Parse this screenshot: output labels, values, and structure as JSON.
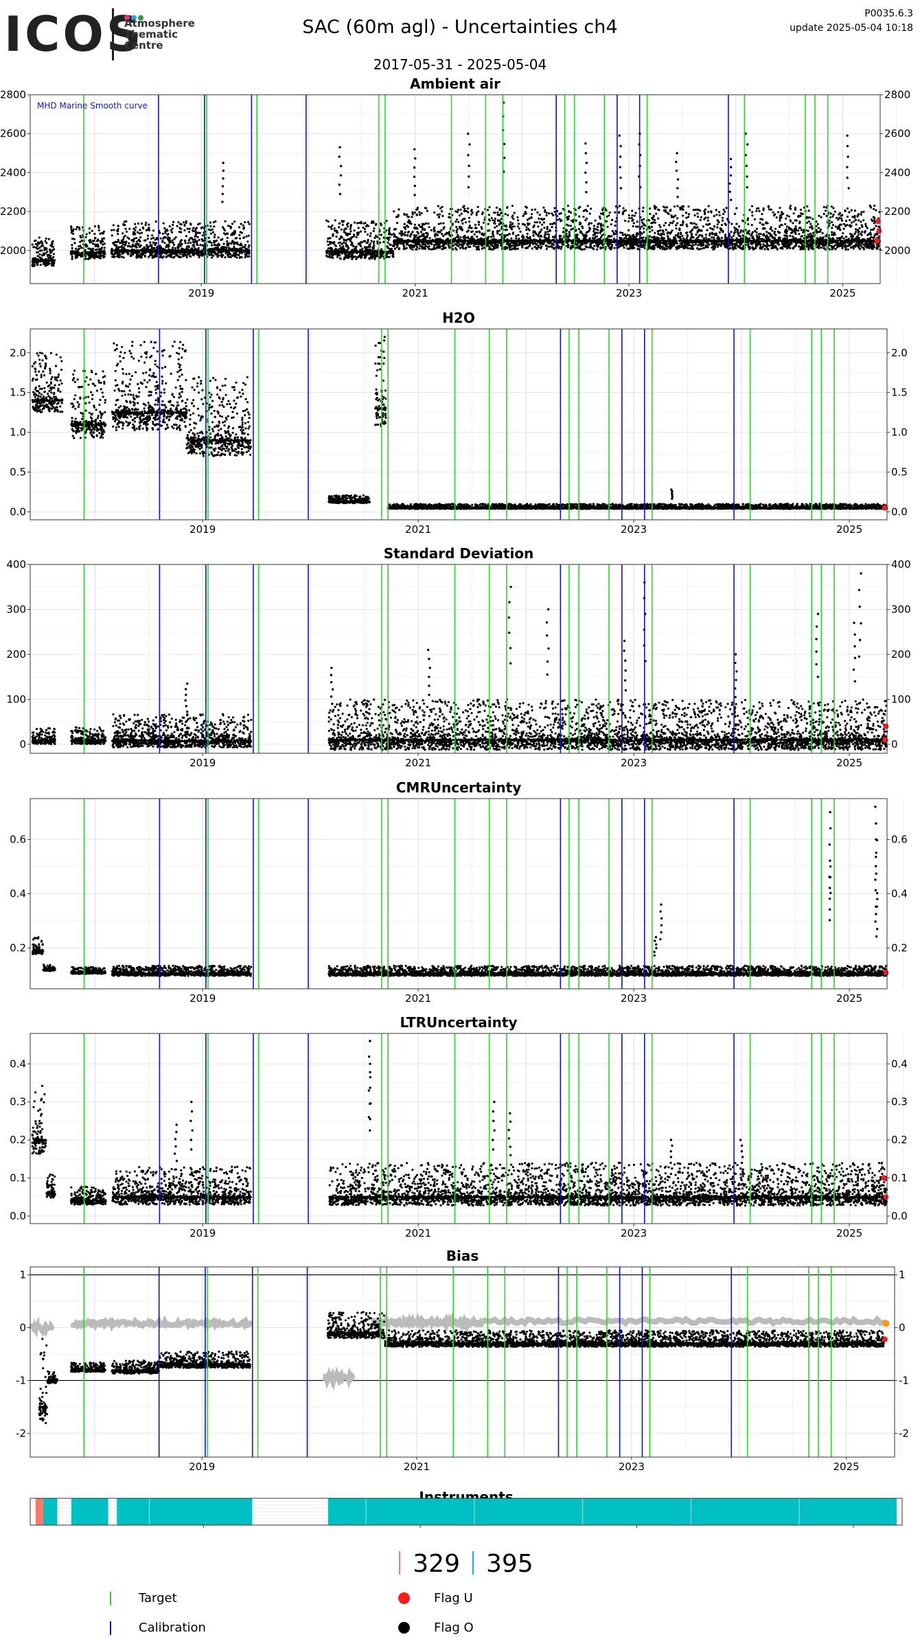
{
  "header": {
    "logo_text": "ICOS",
    "logo_subtitle": [
      "Atmosphere",
      "Thematic",
      "Centre"
    ],
    "title": "SAC  (60m agl) - Uncertainties ch4",
    "version": "P0035.6.3",
    "updated": "update  2025-05-04 10:18",
    "date_range": "2017-05-31 - 2025-05-04"
  },
  "colors": {
    "target": "#22dd22",
    "calibration": "#1010c8",
    "flag_u": "#ff1a1a",
    "flag_o": "#000000",
    "bias_grey": "#bbbbbb",
    "instrument_1": "#f47a6c",
    "instrument_2": "#00c0c4",
    "smooth_curve": "#1010ff"
  },
  "events": {
    "target": [
      2017.9,
      2019.05,
      2019.52,
      2020.66,
      2020.72,
      2021.34,
      2021.66,
      2021.82,
      2022.4,
      2022.49,
      2022.77,
      2023.17,
      2024.08,
      2024.65,
      2024.74,
      2024.86
    ],
    "calibration": [
      2018.6,
      2019.03,
      2019.47,
      2019.98,
      2022.32,
      2022.89,
      2023.1,
      2023.93
    ]
  },
  "chart_data": [
    {
      "type": "scatter",
      "title": "Ambient air",
      "annotation": "MHD Marine Smooth curve",
      "xlim": [
        2017.4,
        2025.35
      ],
      "ylim": [
        1830,
        2800
      ],
      "yticks": [
        2000,
        2200,
        2400,
        2600,
        2800
      ],
      "xticks": [
        2019,
        2021,
        2023,
        2025
      ],
      "grid": true,
      "segments": [
        {
          "x": [
            2017.42,
            2017.63
          ],
          "base": 1950,
          "spread": 120
        },
        {
          "x": [
            2017.78,
            2018.1
          ],
          "base": 1990,
          "spread": 140
        },
        {
          "x": [
            2018.16,
            2019.45
          ],
          "base": 2000,
          "spread": 150
        },
        {
          "x": [
            2020.17,
            2020.8
          ],
          "base": 1995,
          "spread": 160
        },
        {
          "x": [
            2020.8,
            2025.35
          ],
          "base": 2050,
          "spread": 180
        }
      ],
      "spikes": [
        [
          2019.2,
          2450
        ],
        [
          2020.3,
          2530
        ],
        [
          2021.0,
          2520
        ],
        [
          2021.5,
          2600
        ],
        [
          2021.83,
          2760
        ],
        [
          2022.6,
          2550
        ],
        [
          2022.92,
          2590
        ],
        [
          2023.1,
          2600
        ],
        [
          2023.45,
          2500
        ],
        [
          2023.95,
          2470
        ],
        [
          2024.1,
          2600
        ],
        [
          2025.05,
          2590
        ]
      ],
      "flag_u_points": [
        [
          2025.32,
          2050
        ],
        [
          2025.33,
          2150
        ],
        [
          2025.34,
          2100
        ]
      ]
    },
    {
      "type": "scatter",
      "title": "H2O",
      "xlim": [
        2017.4,
        2025.35
      ],
      "ylim": [
        -0.1,
        2.3
      ],
      "yticks": [
        0.0,
        0.5,
        1.0,
        1.5,
        2.0
      ],
      "xticks": [
        2019,
        2021,
        2023,
        2025
      ],
      "grid": true,
      "segments": [
        {
          "x": [
            2017.42,
            2017.7
          ],
          "base": 1.4,
          "spread": 0.6
        },
        {
          "x": [
            2017.78,
            2018.1
          ],
          "base": 1.1,
          "spread": 0.7
        },
        {
          "x": [
            2018.16,
            2018.85
          ],
          "base": 1.25,
          "spread": 0.9
        },
        {
          "x": [
            2018.85,
            2019.45
          ],
          "base": 0.9,
          "spread": 0.8
        },
        {
          "x": [
            2020.17,
            2020.55
          ],
          "base": 0.13,
          "spread": 0.08
        },
        {
          "x": [
            2020.6,
            2020.7
          ],
          "base": 1.3,
          "spread": 1.0
        },
        {
          "x": [
            2020.72,
            2025.35
          ],
          "base": 0.05,
          "spread": 0.05
        }
      ],
      "spikes": [
        [
          2023.35,
          0.28
        ]
      ],
      "flag_u_points": [
        [
          2025.33,
          0.05
        ]
      ]
    },
    {
      "type": "scatter",
      "title": "Standard Deviation",
      "xlim": [
        2017.4,
        2025.35
      ],
      "ylim": [
        -20,
        400
      ],
      "yticks": [
        0,
        100,
        200,
        300,
        400
      ],
      "xticks": [
        2019,
        2021,
        2023,
        2025
      ],
      "grid": true,
      "segments": [
        {
          "x": [
            2017.42,
            2017.63
          ],
          "base": 8,
          "spread": 30
        },
        {
          "x": [
            2017.78,
            2018.1
          ],
          "base": 8,
          "spread": 30
        },
        {
          "x": [
            2018.16,
            2019.45
          ],
          "base": 8,
          "spread": 60
        },
        {
          "x": [
            2020.17,
            2025.35
          ],
          "base": 10,
          "spread": 90
        }
      ],
      "spikes": [
        [
          2018.85,
          135
        ],
        [
          2020.2,
          170
        ],
        [
          2021.1,
          210
        ],
        [
          2021.85,
          350
        ],
        [
          2022.2,
          300
        ],
        [
          2022.92,
          230
        ],
        [
          2023.1,
          360
        ],
        [
          2023.95,
          200
        ],
        [
          2024.7,
          290
        ],
        [
          2025.1,
          380
        ],
        [
          2025.05,
          270
        ]
      ],
      "flag_u_points": [
        [
          2025.33,
          10
        ],
        [
          2025.34,
          40
        ]
      ]
    },
    {
      "type": "scatter",
      "title": "CMRUncertainty",
      "xlim": [
        2017.4,
        2025.35
      ],
      "ylim": [
        0.05,
        0.75
      ],
      "yticks": [
        0.2,
        0.4,
        0.6
      ],
      "xticks": [
        2019,
        2021,
        2023,
        2025
      ],
      "grid": true,
      "segments": [
        {
          "x": [
            2017.42,
            2017.52
          ],
          "base": 0.19,
          "spread": 0.05
        },
        {
          "x": [
            2017.52,
            2017.63
          ],
          "base": 0.12,
          "spread": 0.02
        },
        {
          "x": [
            2017.78,
            2018.1
          ],
          "base": 0.11,
          "spread": 0.02
        },
        {
          "x": [
            2018.16,
            2019.45
          ],
          "base": 0.105,
          "spread": 0.03
        },
        {
          "x": [
            2020.17,
            2025.35
          ],
          "base": 0.105,
          "spread": 0.03
        }
      ],
      "spikes": [
        [
          2023.25,
          0.36
        ],
        [
          2023.2,
          0.24
        ],
        [
          2024.82,
          0.7
        ],
        [
          2024.82,
          0.5
        ],
        [
          2025.25,
          0.72
        ],
        [
          2025.25,
          0.6
        ],
        [
          2025.25,
          0.38
        ]
      ],
      "flag_u_points": [
        [
          2025.34,
          0.11
        ]
      ]
    },
    {
      "type": "scatter",
      "title": "LTRUncertainty",
      "xlim": [
        2017.4,
        2025.35
      ],
      "ylim": [
        -0.02,
        0.48
      ],
      "yticks": [
        0.0,
        0.1,
        0.2,
        0.3,
        0.4
      ],
      "xticks": [
        2019,
        2021,
        2023,
        2025
      ],
      "grid": true,
      "segments": [
        {
          "x": [
            2017.42,
            2017.55
          ],
          "base": 0.2,
          "spread": 0.15
        },
        {
          "x": [
            2017.55,
            2017.63
          ],
          "base": 0.06,
          "spread": 0.05
        },
        {
          "x": [
            2017.78,
            2018.1
          ],
          "base": 0.04,
          "spread": 0.04
        },
        {
          "x": [
            2018.16,
            2019.45
          ],
          "base": 0.05,
          "spread": 0.08
        },
        {
          "x": [
            2020.17,
            2025.35
          ],
          "base": 0.05,
          "spread": 0.09
        }
      ],
      "spikes": [
        [
          2018.75,
          0.24
        ],
        [
          2018.9,
          0.3
        ],
        [
          2020.55,
          0.46
        ],
        [
          2020.55,
          0.4
        ],
        [
          2021.7,
          0.3
        ],
        [
          2021.85,
          0.27
        ],
        [
          2022.8,
          0.12
        ],
        [
          2023.35,
          0.2
        ],
        [
          2024.0,
          0.2
        ],
        [
          2025.22,
          0.08
        ]
      ],
      "flag_u_points": [
        [
          2025.32,
          0.1
        ],
        [
          2025.34,
          0.05
        ]
      ]
    },
    {
      "type": "scatter",
      "title": "Bias",
      "xlim": [
        2017.4,
        2025.45
      ],
      "ylim": [
        -2.45,
        1.15
      ],
      "yticks": [
        -2,
        -1,
        0,
        1
      ],
      "xticks": [
        2019,
        2021,
        2023,
        2025
      ],
      "hlines": [
        1,
        -1
      ],
      "grid": true,
      "segments": [
        {
          "x": [
            2017.48,
            2017.56
          ],
          "base": -1.5,
          "spread": 1.3
        },
        {
          "x": [
            2017.56,
            2017.65
          ],
          "base": -1.0,
          "spread": 0.2
        },
        {
          "x": [
            2017.78,
            2018.1
          ],
          "base": -0.8,
          "spread": 0.15
        },
        {
          "x": [
            2018.16,
            2018.6
          ],
          "base": -0.82,
          "spread": 0.2
        },
        {
          "x": [
            2018.6,
            2019.45
          ],
          "base": -0.7,
          "spread": 0.25
        },
        {
          "x": [
            2020.17,
            2020.7
          ],
          "base": -0.1,
          "spread": 0.4
        },
        {
          "x": [
            2020.7,
            2025.35
          ],
          "base": -0.3,
          "spread": 0.25
        }
      ],
      "grey_series": [
        {
          "x": [
            2017.42,
            2017.6
          ],
          "y": 0.0
        },
        {
          "x": [
            2017.8,
            2019.45
          ],
          "y": 0.08
        },
        {
          "x": [
            2020.15,
            2020.4
          ],
          "y": -0.95
        },
        {
          "x": [
            2020.6,
            2021.6
          ],
          "y": 0.1
        },
        {
          "x": [
            2021.6,
            2025.35
          ],
          "y": 0.12
        }
      ],
      "flag_u_points": [
        [
          2025.36,
          -0.22
        ]
      ],
      "flag_orange_points": [
        [
          2025.37,
          0.08
        ]
      ]
    }
  ],
  "instruments": {
    "title": "Instruments",
    "xlim": [
      2017.4,
      2025.45
    ],
    "xticks": [
      2019,
      2021,
      2023,
      2025
    ],
    "bars": [
      {
        "from": 2017.45,
        "to": 2017.52,
        "instrument": 1
      },
      {
        "from": 2017.52,
        "to": 2017.65,
        "instrument": 2
      },
      {
        "from": 2017.78,
        "to": 2018.12,
        "instrument": 2
      },
      {
        "from": 2018.2,
        "to": 2019.45,
        "instrument": 2
      },
      {
        "from": 2020.15,
        "to": 2025.4,
        "instrument": 2
      }
    ]
  },
  "counts": [
    "329",
    "395"
  ],
  "legend": {
    "target": "Target",
    "calibration": "Calibration",
    "flag_u": "Flag U",
    "flag_o": "Flag O"
  }
}
